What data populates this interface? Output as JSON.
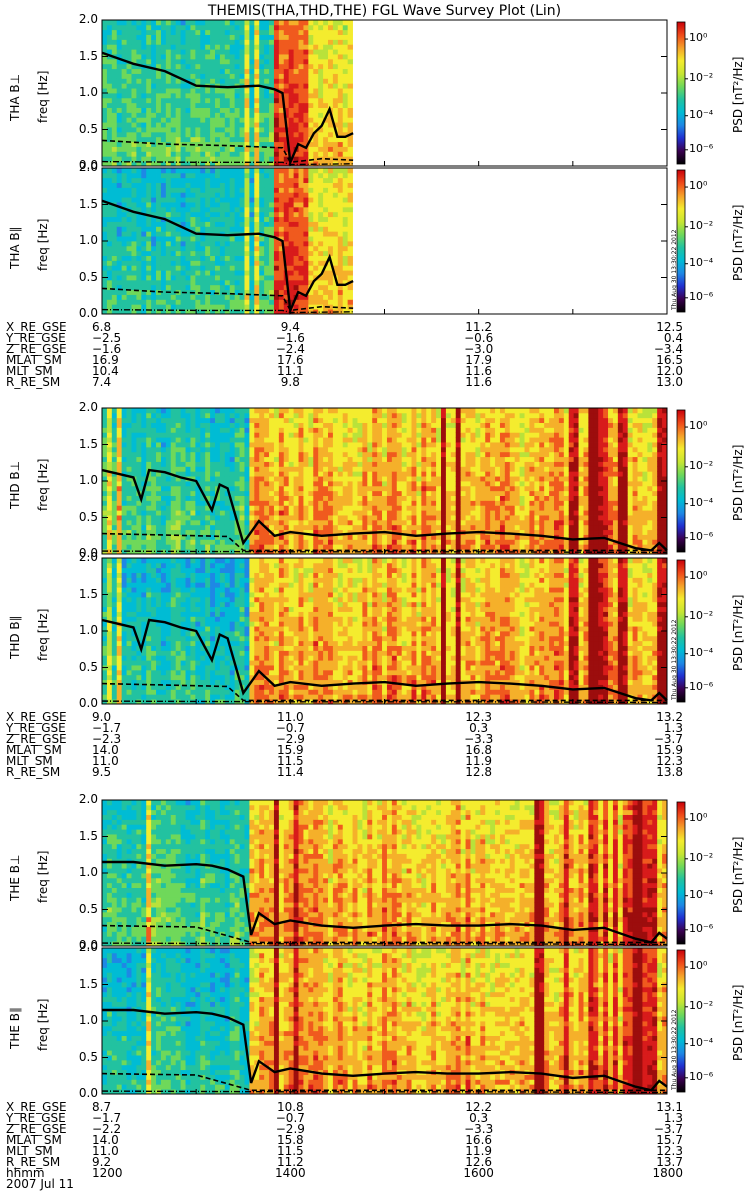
{
  "chart_data": {
    "type": "heatmap",
    "title": "THEMIS(THA,THD,THE) FGL Wave Survey Plot (Lin)",
    "date": "2007 Jul 11",
    "time_label": "hhmm",
    "time_ticks": [
      "1200",
      "1400",
      "1600",
      "1800"
    ],
    "xlim_hhmm": [
      "1200",
      "1800"
    ],
    "ylim": [
      0,
      2.0
    ],
    "y_ticks": [
      "0.0",
      "0.5",
      "1.0",
      "1.5",
      "2.0"
    ],
    "ylabel": "freq [Hz]",
    "colorbar": {
      "label": "PSD [nT²/Hz]",
      "scale": "log",
      "ticks": [
        "10⁰",
        "10⁻²",
        "10⁻⁴",
        "10⁻⁶"
      ],
      "range": [
        "1e-7",
        "1e1"
      ]
    },
    "stamp": "Thu Aug 30 13:30:22 2012",
    "probes": [
      {
        "id": "THA",
        "panels": [
          {
            "name": "THA B⊥",
            "panel_label": "THA B⊥",
            "freq_label": "freq [Hz]",
            "show_stamp": false
          },
          {
            "name": "THA B∥",
            "panel_label": "THA B∥",
            "freq_label": "freq [Hz]",
            "show_stamp": true
          }
        ],
        "data_end_hhmm": "1440",
        "lines": {
          "solid": {
            "times": [
              "1200",
              "1220",
              "1240",
              "1300",
              "1320",
              "1340",
              "1350",
              "1355",
              "1400",
              "1405",
              "1410",
              "1415",
              "1420",
              "1425",
              "1430",
              "1435",
              "1440"
            ],
            "values": [
              1.55,
              1.4,
              1.3,
              1.1,
              1.08,
              1.1,
              1.05,
              1.0,
              0.05,
              0.3,
              0.25,
              0.45,
              0.55,
              0.78,
              0.4,
              0.4,
              0.45
            ]
          },
          "dashed": {
            "times": [
              "1200",
              "1240",
              "1320",
              "1355",
              "1400",
              "1420",
              "1440"
            ],
            "values": [
              0.35,
              0.3,
              0.28,
              0.25,
              0.05,
              0.1,
              0.08
            ]
          },
          "dashdot": {
            "times": [
              "1200",
              "1300",
              "1355",
              "1400",
              "1440"
            ],
            "values": [
              0.06,
              0.05,
              0.05,
              0.02,
              0.03
            ]
          }
        },
        "orbit": {
          "rows": [
            {
              "label": "X_RE_GSE",
              "values": [
                "6.8",
                "9.4",
                "11.2",
                "12.5"
              ]
            },
            {
              "label": "Y_RE_GSE",
              "values": [
                "−2.5",
                "−1.6",
                "−0.6",
                "0.4"
              ]
            },
            {
              "label": "Z_RE_GSE",
              "values": [
                "−1.6",
                "−2.4",
                "−3.0",
                "−3.4"
              ]
            },
            {
              "label": "MLAT_SM",
              "values": [
                "16.9",
                "17.6",
                "17.9",
                "16.5"
              ]
            },
            {
              "label": "MLT_SM",
              "values": [
                "10.4",
                "11.1",
                "11.6",
                "12.0"
              ]
            },
            {
              "label": "R_RE_SM",
              "values": [
                "7.4",
                "9.8",
                "11.6",
                "13.0"
              ]
            }
          ]
        }
      },
      {
        "id": "THD",
        "panels": [
          {
            "name": "THD B⊥",
            "panel_label": "THD B⊥",
            "freq_label": "freq [Hz]",
            "show_stamp": false
          },
          {
            "name": "THD B∥",
            "panel_label": "THD B∥",
            "freq_label": "freq [Hz]",
            "show_stamp": true
          }
        ],
        "data_end_hhmm": "1800",
        "lines": {
          "solid": {
            "times": [
              "1200",
              "1210",
              "1220",
              "1225",
              "1230",
              "1240",
              "1250",
              "1300",
              "1310",
              "1315",
              "1320",
              "1330",
              "1340",
              "1350",
              "1400",
              "1420",
              "1440",
              "1500",
              "1520",
              "1540",
              "1600",
              "1620",
              "1640",
              "1700",
              "1720",
              "1740",
              "1750",
              "1755",
              "1800"
            ],
            "values": [
              1.15,
              1.1,
              1.05,
              0.75,
              1.15,
              1.12,
              1.05,
              1.0,
              0.6,
              0.95,
              0.9,
              0.15,
              0.45,
              0.25,
              0.3,
              0.25,
              0.28,
              0.3,
              0.25,
              0.28,
              0.3,
              0.28,
              0.25,
              0.2,
              0.22,
              0.08,
              0.05,
              0.15,
              0.05
            ]
          },
          "dashed": {
            "times": [
              "1200",
              "1240",
              "1320",
              "1330",
              "1400",
              "1500",
              "1600",
              "1700",
              "1800"
            ],
            "values": [
              0.28,
              0.26,
              0.24,
              0.05,
              0.05,
              0.05,
              0.05,
              0.05,
              0.05
            ]
          },
          "dashdot": {
            "times": [
              "1200",
              "1400",
              "1600",
              "1800"
            ],
            "values": [
              0.04,
              0.03,
              0.03,
              0.02
            ]
          }
        },
        "orbit": {
          "rows": [
            {
              "label": "X_RE_GSE",
              "values": [
                "9.0",
                "11.0",
                "12.3",
                "13.2"
              ]
            },
            {
              "label": "Y_RE_GSE",
              "values": [
                "−1.7",
                "−0.7",
                "0.3",
                "1.3"
              ]
            },
            {
              "label": "Z_RE_GSE",
              "values": [
                "−2.3",
                "−2.9",
                "−3.3",
                "−3.7"
              ]
            },
            {
              "label": "MLAT_SM",
              "values": [
                "14.0",
                "15.9",
                "16.8",
                "15.9"
              ]
            },
            {
              "label": "MLT_SM",
              "values": [
                "11.0",
                "11.5",
                "11.9",
                "12.3"
              ]
            },
            {
              "label": "R_RE_SM",
              "values": [
                "9.5",
                "11.4",
                "12.8",
                "13.8"
              ]
            }
          ]
        }
      },
      {
        "id": "THE",
        "panels": [
          {
            "name": "THE B⊥",
            "panel_label": "THE B⊥",
            "freq_label": "freq [Hz]",
            "show_stamp": false
          },
          {
            "name": "THE B∥",
            "panel_label": "THE B∥",
            "freq_label": "freq [Hz]",
            "show_stamp": true
          }
        ],
        "data_end_hhmm": "1800",
        "lines": {
          "solid": {
            "times": [
              "1200",
              "1220",
              "1240",
              "1300",
              "1310",
              "1320",
              "1330",
              "1335",
              "1340",
              "1350",
              "1400",
              "1420",
              "1440",
              "1500",
              "1520",
              "1540",
              "1600",
              "1620",
              "1640",
              "1700",
              "1720",
              "1740",
              "1750",
              "1755",
              "1800"
            ],
            "values": [
              1.15,
              1.15,
              1.1,
              1.12,
              1.1,
              1.05,
              0.95,
              0.15,
              0.45,
              0.3,
              0.35,
              0.28,
              0.25,
              0.28,
              0.3,
              0.28,
              0.28,
              0.3,
              0.28,
              0.22,
              0.25,
              0.1,
              0.05,
              0.18,
              0.1
            ]
          },
          "dashed": {
            "times": [
              "1200",
              "1300",
              "1335",
              "1400",
              "1500",
              "1600",
              "1700",
              "1800"
            ],
            "values": [
              0.28,
              0.26,
              0.05,
              0.05,
              0.05,
              0.05,
              0.05,
              0.05
            ]
          },
          "dashdot": {
            "times": [
              "1200",
              "1400",
              "1600",
              "1800"
            ],
            "values": [
              0.04,
              0.03,
              0.03,
              0.02
            ]
          }
        },
        "orbit": {
          "rows": [
            {
              "label": "X_RE_GSE",
              "values": [
                "8.7",
                "10.8",
                "12.2",
                "13.1"
              ]
            },
            {
              "label": "Y_RE_GSE",
              "values": [
                "−1.7",
                "−0.7",
                "0.3",
                "1.3"
              ]
            },
            {
              "label": "Z_RE_GSE",
              "values": [
                "−2.2",
                "−2.9",
                "−3.3",
                "−3.7"
              ]
            },
            {
              "label": "MLAT_SM",
              "values": [
                "14.0",
                "15.8",
                "16.6",
                "15.7"
              ]
            },
            {
              "label": "MLT_SM",
              "values": [
                "11.0",
                "11.5",
                "11.9",
                "12.3"
              ]
            },
            {
              "label": "R_RE_SM",
              "values": [
                "9.2",
                "11.2",
                "12.6",
                "13.7"
              ]
            }
          ]
        }
      }
    ]
  }
}
